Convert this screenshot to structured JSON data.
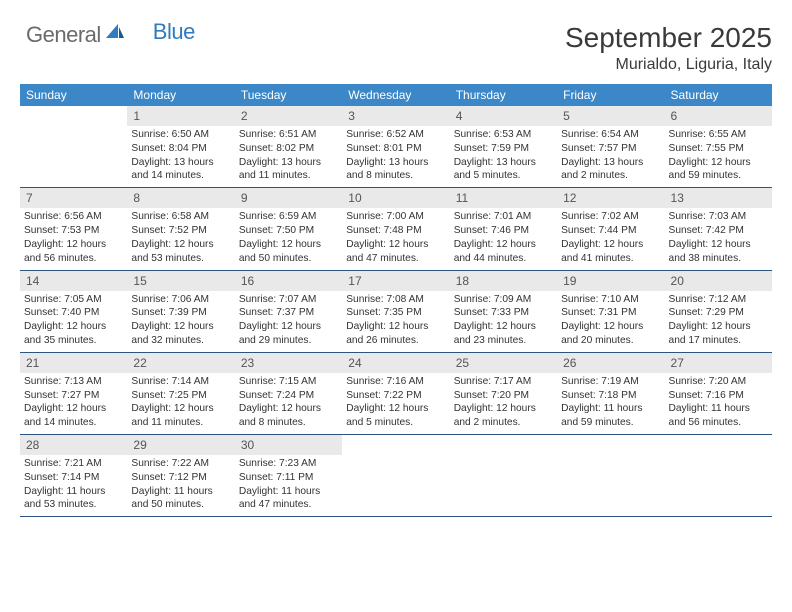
{
  "brand": {
    "part1": "General",
    "part2": "Blue"
  },
  "title": "September 2025",
  "location": "Murialdo, Liguria, Italy",
  "colors": {
    "header_bg": "#3b87c8",
    "header_fg": "#ffffff",
    "daynum_bg": "#e9e9e9",
    "week_border": "#2c5680",
    "text": "#333333",
    "title_fg": "#3a3a3a",
    "logo_gray": "#6a6a6a",
    "logo_blue": "#2f7bbf"
  },
  "weekdays": [
    "Sunday",
    "Monday",
    "Tuesday",
    "Wednesday",
    "Thursday",
    "Friday",
    "Saturday"
  ],
  "weeks": [
    [
      {
        "n": "",
        "sr": "",
        "ss": "",
        "dl": ""
      },
      {
        "n": "1",
        "sr": "Sunrise: 6:50 AM",
        "ss": "Sunset: 8:04 PM",
        "dl": "Daylight: 13 hours and 14 minutes."
      },
      {
        "n": "2",
        "sr": "Sunrise: 6:51 AM",
        "ss": "Sunset: 8:02 PM",
        "dl": "Daylight: 13 hours and 11 minutes."
      },
      {
        "n": "3",
        "sr": "Sunrise: 6:52 AM",
        "ss": "Sunset: 8:01 PM",
        "dl": "Daylight: 13 hours and 8 minutes."
      },
      {
        "n": "4",
        "sr": "Sunrise: 6:53 AM",
        "ss": "Sunset: 7:59 PM",
        "dl": "Daylight: 13 hours and 5 minutes."
      },
      {
        "n": "5",
        "sr": "Sunrise: 6:54 AM",
        "ss": "Sunset: 7:57 PM",
        "dl": "Daylight: 13 hours and 2 minutes."
      },
      {
        "n": "6",
        "sr": "Sunrise: 6:55 AM",
        "ss": "Sunset: 7:55 PM",
        "dl": "Daylight: 12 hours and 59 minutes."
      }
    ],
    [
      {
        "n": "7",
        "sr": "Sunrise: 6:56 AM",
        "ss": "Sunset: 7:53 PM",
        "dl": "Daylight: 12 hours and 56 minutes."
      },
      {
        "n": "8",
        "sr": "Sunrise: 6:58 AM",
        "ss": "Sunset: 7:52 PM",
        "dl": "Daylight: 12 hours and 53 minutes."
      },
      {
        "n": "9",
        "sr": "Sunrise: 6:59 AM",
        "ss": "Sunset: 7:50 PM",
        "dl": "Daylight: 12 hours and 50 minutes."
      },
      {
        "n": "10",
        "sr": "Sunrise: 7:00 AM",
        "ss": "Sunset: 7:48 PM",
        "dl": "Daylight: 12 hours and 47 minutes."
      },
      {
        "n": "11",
        "sr": "Sunrise: 7:01 AM",
        "ss": "Sunset: 7:46 PM",
        "dl": "Daylight: 12 hours and 44 minutes."
      },
      {
        "n": "12",
        "sr": "Sunrise: 7:02 AM",
        "ss": "Sunset: 7:44 PM",
        "dl": "Daylight: 12 hours and 41 minutes."
      },
      {
        "n": "13",
        "sr": "Sunrise: 7:03 AM",
        "ss": "Sunset: 7:42 PM",
        "dl": "Daylight: 12 hours and 38 minutes."
      }
    ],
    [
      {
        "n": "14",
        "sr": "Sunrise: 7:05 AM",
        "ss": "Sunset: 7:40 PM",
        "dl": "Daylight: 12 hours and 35 minutes."
      },
      {
        "n": "15",
        "sr": "Sunrise: 7:06 AM",
        "ss": "Sunset: 7:39 PM",
        "dl": "Daylight: 12 hours and 32 minutes."
      },
      {
        "n": "16",
        "sr": "Sunrise: 7:07 AM",
        "ss": "Sunset: 7:37 PM",
        "dl": "Daylight: 12 hours and 29 minutes."
      },
      {
        "n": "17",
        "sr": "Sunrise: 7:08 AM",
        "ss": "Sunset: 7:35 PM",
        "dl": "Daylight: 12 hours and 26 minutes."
      },
      {
        "n": "18",
        "sr": "Sunrise: 7:09 AM",
        "ss": "Sunset: 7:33 PM",
        "dl": "Daylight: 12 hours and 23 minutes."
      },
      {
        "n": "19",
        "sr": "Sunrise: 7:10 AM",
        "ss": "Sunset: 7:31 PM",
        "dl": "Daylight: 12 hours and 20 minutes."
      },
      {
        "n": "20",
        "sr": "Sunrise: 7:12 AM",
        "ss": "Sunset: 7:29 PM",
        "dl": "Daylight: 12 hours and 17 minutes."
      }
    ],
    [
      {
        "n": "21",
        "sr": "Sunrise: 7:13 AM",
        "ss": "Sunset: 7:27 PM",
        "dl": "Daylight: 12 hours and 14 minutes."
      },
      {
        "n": "22",
        "sr": "Sunrise: 7:14 AM",
        "ss": "Sunset: 7:25 PM",
        "dl": "Daylight: 12 hours and 11 minutes."
      },
      {
        "n": "23",
        "sr": "Sunrise: 7:15 AM",
        "ss": "Sunset: 7:24 PM",
        "dl": "Daylight: 12 hours and 8 minutes."
      },
      {
        "n": "24",
        "sr": "Sunrise: 7:16 AM",
        "ss": "Sunset: 7:22 PM",
        "dl": "Daylight: 12 hours and 5 minutes."
      },
      {
        "n": "25",
        "sr": "Sunrise: 7:17 AM",
        "ss": "Sunset: 7:20 PM",
        "dl": "Daylight: 12 hours and 2 minutes."
      },
      {
        "n": "26",
        "sr": "Sunrise: 7:19 AM",
        "ss": "Sunset: 7:18 PM",
        "dl": "Daylight: 11 hours and 59 minutes."
      },
      {
        "n": "27",
        "sr": "Sunrise: 7:20 AM",
        "ss": "Sunset: 7:16 PM",
        "dl": "Daylight: 11 hours and 56 minutes."
      }
    ],
    [
      {
        "n": "28",
        "sr": "Sunrise: 7:21 AM",
        "ss": "Sunset: 7:14 PM",
        "dl": "Daylight: 11 hours and 53 minutes."
      },
      {
        "n": "29",
        "sr": "Sunrise: 7:22 AM",
        "ss": "Sunset: 7:12 PM",
        "dl": "Daylight: 11 hours and 50 minutes."
      },
      {
        "n": "30",
        "sr": "Sunrise: 7:23 AM",
        "ss": "Sunset: 7:11 PM",
        "dl": "Daylight: 11 hours and 47 minutes."
      },
      {
        "n": "",
        "sr": "",
        "ss": "",
        "dl": ""
      },
      {
        "n": "",
        "sr": "",
        "ss": "",
        "dl": ""
      },
      {
        "n": "",
        "sr": "",
        "ss": "",
        "dl": ""
      },
      {
        "n": "",
        "sr": "",
        "ss": "",
        "dl": ""
      }
    ]
  ]
}
